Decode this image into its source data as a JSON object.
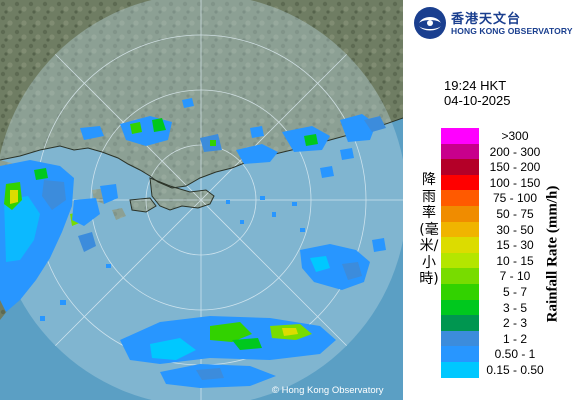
{
  "logo": {
    "name_zh": "香港天文台",
    "name_en": "HONG KONG OBSERVATORY"
  },
  "timestamp": {
    "time": "19:24 HKT",
    "date": "04-10-2025"
  },
  "legend": {
    "title_zh": "降雨率(毫米/小時)",
    "title_en": "Rainfall Rate (mm/h)",
    "items": [
      {
        "label": ">300",
        "color": "#ff00ff"
      },
      {
        "label": "200 - 300",
        "color": "#c8008c"
      },
      {
        "label": "150 - 200",
        "color": "#b40028"
      },
      {
        "label": "100 - 150",
        "color": "#ff0000"
      },
      {
        "label": "75 - 100",
        "color": "#ff5a00"
      },
      {
        "label": "50 - 75",
        "color": "#f08c00"
      },
      {
        "label": "30 - 50",
        "color": "#f0b400"
      },
      {
        "label": "15 - 30",
        "color": "#dcdc00"
      },
      {
        "label": "10 - 15",
        "color": "#b4e600"
      },
      {
        "label": "7 - 10",
        "color": "#78dc00"
      },
      {
        "label": "5 - 7",
        "color": "#32d200"
      },
      {
        "label": "3 - 5",
        "color": "#00c81e"
      },
      {
        "label": "2 - 3",
        "color": "#009650"
      },
      {
        "label": "1 - 2",
        "color": "#3c8cdc"
      },
      {
        "label": "0.50 - 1",
        "color": "#2896ff"
      },
      {
        "label": "0.15 - 0.50",
        "color": "#00c8ff"
      }
    ]
  },
  "map": {
    "copyright": "© Hong Kong Observatory",
    "colors": {
      "land": "#6f7d63",
      "sea": "#5b9fc4",
      "radar_disk": "#bcd9e6"
    }
  }
}
